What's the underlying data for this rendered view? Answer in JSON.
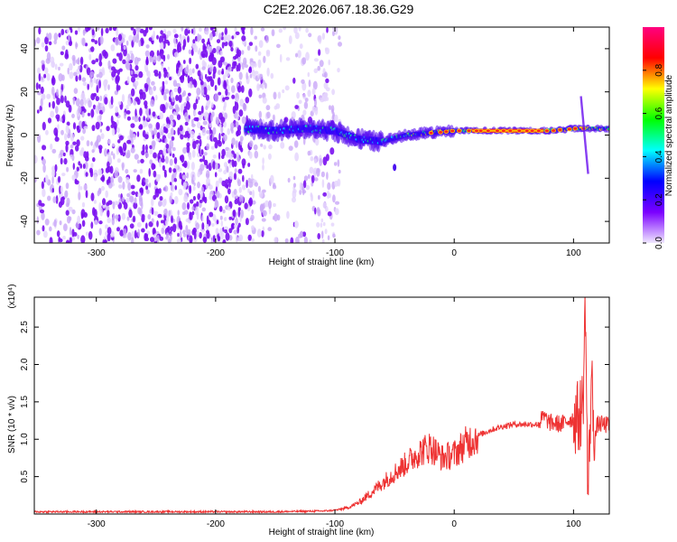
{
  "title": "C2E2.2026.067.18.36.G29",
  "chart_data": [
    {
      "type": "heatmap",
      "xlabel": "Height of straight line (km)",
      "ylabel": "Frequency (Hz)",
      "xlim": [
        -352,
        130
      ],
      "ylim": [
        -50,
        50
      ],
      "xticks": [
        -300,
        -200,
        -100,
        0,
        100
      ],
      "yticks": [
        -40,
        -20,
        0,
        20,
        40
      ],
      "colorbar": {
        "label": "Normalized spectral amplitude",
        "range": [
          0,
          1
        ],
        "ticks": [
          "0.0",
          "0.2",
          "0.4",
          "0.6",
          "0.8"
        ],
        "tick_values": [
          0,
          0.2,
          0.4,
          0.6,
          0.8
        ],
        "colormap": [
          "#f0e8ff",
          "#7b00ff",
          "#0000ff",
          "#00ffff",
          "#00ff00",
          "#ffff00",
          "#ff0000",
          "#ff0080"
        ]
      },
      "features": {
        "noise_region_x": [
          -352,
          -100
        ],
        "signal_track": [
          [
            -175,
            3
          ],
          [
            -150,
            2
          ],
          [
            -125,
            3
          ],
          [
            -100,
            2
          ],
          [
            -80,
            -2
          ],
          [
            -60,
            -3
          ],
          [
            -40,
            0
          ],
          [
            -20,
            1
          ],
          [
            0,
            2
          ],
          [
            20,
            2
          ],
          [
            50,
            2
          ],
          [
            80,
            2
          ],
          [
            100,
            3
          ],
          [
            130,
            3
          ]
        ],
        "dense_band_x": [
          15,
          75
        ],
        "spike_x": 110
      }
    },
    {
      "type": "line",
      "xlabel": "Height of straight line (km)",
      "ylabel": "SNR (10 * v/v)",
      "yunit": "(x10⁴)",
      "xlim": [
        -352,
        130
      ],
      "ylim": [
        0,
        2.9
      ],
      "xticks": [
        -300,
        -200,
        -100,
        0,
        100
      ],
      "yticks": [
        "0.5",
        "1.0",
        "1.5",
        "2.0",
        "2.5"
      ],
      "ytick_values": [
        0.5,
        1.0,
        1.5,
        2.0,
        2.5
      ],
      "color": "#ee3333",
      "series": [
        {
          "x": [
            -352,
            -300,
            -250,
            -200,
            -150,
            -110,
            -100,
            -90,
            -80,
            -70,
            -60,
            -50,
            -40,
            -30,
            -20,
            -10,
            0,
            10,
            20,
            30,
            40,
            50,
            60,
            70,
            75,
            80,
            90,
            95,
            100,
            105,
            108,
            110,
            112,
            115,
            118,
            120,
            125,
            130
          ],
          "values": [
            0.03,
            0.03,
            0.03,
            0.03,
            0.03,
            0.04,
            0.05,
            0.08,
            0.15,
            0.28,
            0.42,
            0.55,
            0.68,
            0.82,
            0.9,
            0.75,
            0.8,
            0.95,
            1.05,
            1.12,
            1.17,
            1.2,
            1.2,
            1.2,
            1.3,
            1.22,
            1.2,
            1.25,
            1.28,
            1.3,
            1.5,
            2.85,
            0.15,
            1.8,
            1.0,
            1.2,
            1.2,
            1.18
          ]
        }
      ]
    }
  ]
}
